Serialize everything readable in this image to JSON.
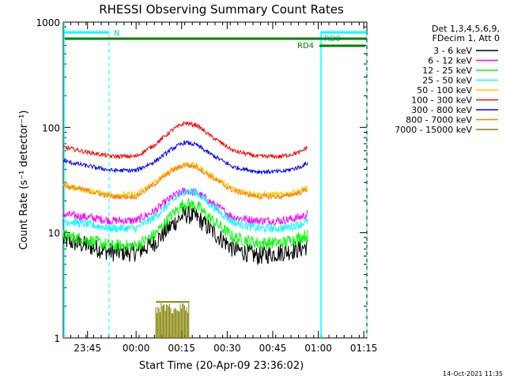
{
  "chart_data": {
    "type": "line",
    "title": "RHESSI Observing Summary Count Rates",
    "xlabel": "Start Time (20-Apr-09 23:36:02)",
    "ylabel": "Count Rate (s⁻¹ detector⁻¹)",
    "x_unit": "minutes after 20-Apr-09 23:36:02",
    "xlim": [
      0,
      100
    ],
    "ylim": [
      1,
      1000
    ],
    "yscale": "log",
    "x_ticks": [
      {
        "x": 8,
        "label": "23:45"
      },
      {
        "x": 24,
        "label": "00:00"
      },
      {
        "x": 39,
        "label": "00:15"
      },
      {
        "x": 54,
        "label": "00:30"
      },
      {
        "x": 69,
        "label": "00:45"
      },
      {
        "x": 84,
        "label": "01:00"
      },
      {
        "x": 99,
        "label": "01:15"
      }
    ],
    "y_ticks": [
      {
        "y": 1,
        "label": "1"
      },
      {
        "y": 10,
        "label": "10"
      },
      {
        "y": 100,
        "label": "100"
      },
      {
        "y": 1000,
        "label": "1000"
      }
    ],
    "legend": {
      "placement": "right",
      "header": [
        "Det 1,3,4,5,6,9,",
        "FDecim 1, Att 0"
      ]
    },
    "series": [
      {
        "name": "3 - 6 keV",
        "color": "#000000",
        "noise": 0.09,
        "x": [
          0,
          8,
          16,
          24,
          30,
          36,
          40,
          44,
          48,
          56,
          64,
          72,
          78,
          80.5
        ],
        "y": [
          8.5,
          7.5,
          6.5,
          6.5,
          8,
          12,
          15,
          14,
          11,
          7,
          6,
          6.5,
          7,
          7.5
        ]
      },
      {
        "name": "6 - 12 keV",
        "color": "#ff00ff",
        "noise": 0.04,
        "x": [
          0,
          8,
          16,
          24,
          30,
          36,
          40,
          44,
          48,
          56,
          64,
          72,
          78,
          80.5
        ],
        "y": [
          15,
          14,
          13,
          13,
          16,
          22,
          25,
          24,
          20,
          14,
          13,
          13,
          14,
          15
        ]
      },
      {
        "name": "12 - 25 keV",
        "color": "#00ff00",
        "noise": 0.06,
        "x": [
          0,
          8,
          16,
          24,
          30,
          36,
          40,
          44,
          48,
          56,
          64,
          72,
          78,
          80.5
        ],
        "y": [
          9.5,
          8.5,
          7.5,
          7.5,
          9.5,
          15,
          19,
          18,
          14,
          9,
          8,
          8,
          9,
          9.5
        ]
      },
      {
        "name": "25 - 50 keV",
        "color": "#00ffff",
        "noise": 0.04,
        "x": [
          0,
          8,
          16,
          24,
          30,
          36,
          40,
          44,
          48,
          56,
          64,
          72,
          78,
          80.5
        ],
        "y": [
          13,
          12,
          11,
          11,
          14,
          20,
          25,
          24,
          19,
          12.5,
          11,
          11,
          12,
          13
        ]
      },
      {
        "name": "50 - 100 keV",
        "color": "#ffcc00",
        "noise": 0.03,
        "x": [
          0,
          8,
          16,
          24,
          30,
          36,
          40,
          44,
          48,
          56,
          64,
          72,
          78,
          80.5
        ],
        "y": [
          28,
          25,
          23,
          23,
          30,
          40,
          45,
          43,
          36,
          26,
          23,
          23,
          25,
          27
        ]
      },
      {
        "name": "100 - 300 keV",
        "color": "#ff0000",
        "noise": 0.02,
        "x": [
          0,
          8,
          16,
          24,
          30,
          36,
          40,
          44,
          48,
          56,
          64,
          72,
          78,
          80.5
        ],
        "y": [
          65,
          58,
          53,
          53,
          68,
          95,
          110,
          105,
          85,
          60,
          53,
          53,
          58,
          65
        ]
      },
      {
        "name": "300 - 800 keV",
        "color": "#0000ff",
        "noise": 0.02,
        "x": [
          0,
          8,
          16,
          24,
          30,
          36,
          40,
          44,
          48,
          56,
          64,
          72,
          78,
          80.5
        ],
        "y": [
          48,
          43,
          39,
          39,
          47,
          63,
          72,
          68,
          57,
          42,
          38,
          38,
          42,
          46
        ]
      },
      {
        "name": "800 - 7000 keV",
        "color": "#ff8000",
        "noise": 0.025,
        "x": [
          0,
          8,
          16,
          24,
          30,
          36,
          40,
          44,
          48,
          56,
          64,
          72,
          78,
          80.5
        ],
        "y": [
          28,
          25,
          22,
          22,
          29,
          39,
          44,
          42,
          35,
          25,
          22,
          22,
          24,
          26
        ]
      },
      {
        "name": "7000 - 15000 keV",
        "color": "#808000",
        "noise": 0,
        "x": [],
        "y": []
      }
    ],
    "annotations": [
      "N",
      "RD0",
      "RD4"
    ],
    "timestamp": "14-Oct-2021 11:35"
  }
}
